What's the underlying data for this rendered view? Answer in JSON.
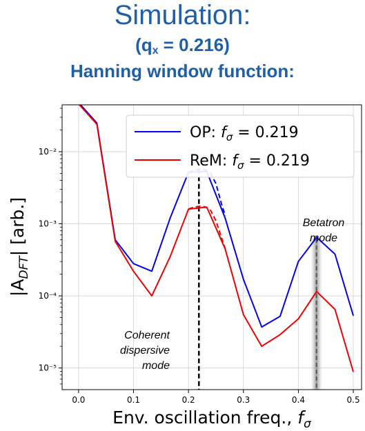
{
  "title": {
    "line1": "Simulation:",
    "line2_prefix": "(q",
    "line2_sub": "x",
    "line2_suffix": " = 0.216)",
    "line3": "Hanning window function:"
  },
  "chart_data": {
    "type": "line",
    "title": "Simulation: (qx = 0.216) Hanning window function:",
    "xlabel": "Env. oscillation freq., f_σ",
    "ylabel": "|A_DFT| [arb.]",
    "xlim": [
      -0.03,
      0.515
    ],
    "ylim_log10": [
      -5.3,
      -1.35
    ],
    "yscale": "log",
    "grid": true,
    "legend_placement": "top-right",
    "x_ticks": [
      0.0,
      0.1,
      0.2,
      0.3,
      0.4,
      0.5
    ],
    "x_tick_labels": [
      "0.0",
      "0.1",
      "0.2",
      "0.3",
      "0.4",
      "0.5"
    ],
    "y_ticks": [
      0.01,
      0.001,
      0.0001,
      1e-05
    ],
    "y_tick_labels": [
      "10⁻²",
      "10⁻³",
      "10⁻⁴",
      "10⁻⁵"
    ],
    "x": [
      0.0,
      0.0333,
      0.0667,
      0.1,
      0.1333,
      0.1667,
      0.2,
      0.2333,
      0.2667,
      0.3,
      0.3333,
      0.3667,
      0.4,
      0.4333,
      0.4667,
      0.5
    ],
    "series": [
      {
        "name": "OP",
        "legend_label": "OP: fσ =  0.219",
        "color": "#0000ee",
        "values": [
          0.048,
          0.025,
          0.0006,
          0.00028,
          0.00022,
          0.0012,
          0.0052,
          0.0053,
          0.0012,
          0.00017,
          3.7e-05,
          5.2e-05,
          0.0003,
          0.00065,
          0.00038,
          5.3e-05
        ]
      },
      {
        "name": "ReM",
        "legend_label": "ReM: fσ =  0.219",
        "color": "#ee0000",
        "values": [
          0.046,
          0.024,
          0.00057,
          0.00022,
          0.0001,
          0.00035,
          0.0016,
          0.0017,
          0.00045,
          5.5e-05,
          2e-05,
          2.9e-05,
          4.8e-05,
          0.000115,
          6.5e-05,
          8.8e-06
        ]
      }
    ],
    "fits": [
      {
        "name": "OP fit",
        "color": "#0000ee",
        "x": [
          0.2,
          0.21,
          0.22,
          0.23,
          0.24,
          0.25,
          0.26,
          0.267
        ],
        "values": [
          0.0052,
          0.0055,
          0.0057,
          0.0056,
          0.0051,
          0.0036,
          0.0019,
          0.0013
        ]
      },
      {
        "name": "ReM fit",
        "color": "#ee0000",
        "x": [
          0.2,
          0.21,
          0.22,
          0.23,
          0.24,
          0.25,
          0.26,
          0.267
        ],
        "values": [
          0.0016,
          0.0017,
          0.00175,
          0.00172,
          0.00155,
          0.0011,
          0.00065,
          0.00045
        ]
      }
    ],
    "markers": [
      {
        "x": 0.219,
        "style": "black-dashed-vertical"
      },
      {
        "x": 0.433,
        "style": "grey-shaded-vertical"
      }
    ],
    "annotations": [
      {
        "lines": [
          "Coherent",
          "dispersive",
          "mode"
        ]
      },
      {
        "lines": [
          "Betatron",
          "mode"
        ]
      }
    ],
    "legend": [
      {
        "prefix": "OP: ",
        "f": "f",
        "sub": "σ",
        "suffix": " =  0.219"
      },
      {
        "prefix": "ReM: ",
        "f": "f",
        "sub": "σ",
        "suffix": " =  0.219"
      }
    ],
    "axis_text": {
      "xlabel_main": "Env. oscillation freq., ",
      "xlabel_f": "f",
      "xlabel_sub": "σ",
      "ylabel_pre": "|A",
      "ylabel_sub": "DFT",
      "ylabel_post": "| [arb.]"
    }
  }
}
